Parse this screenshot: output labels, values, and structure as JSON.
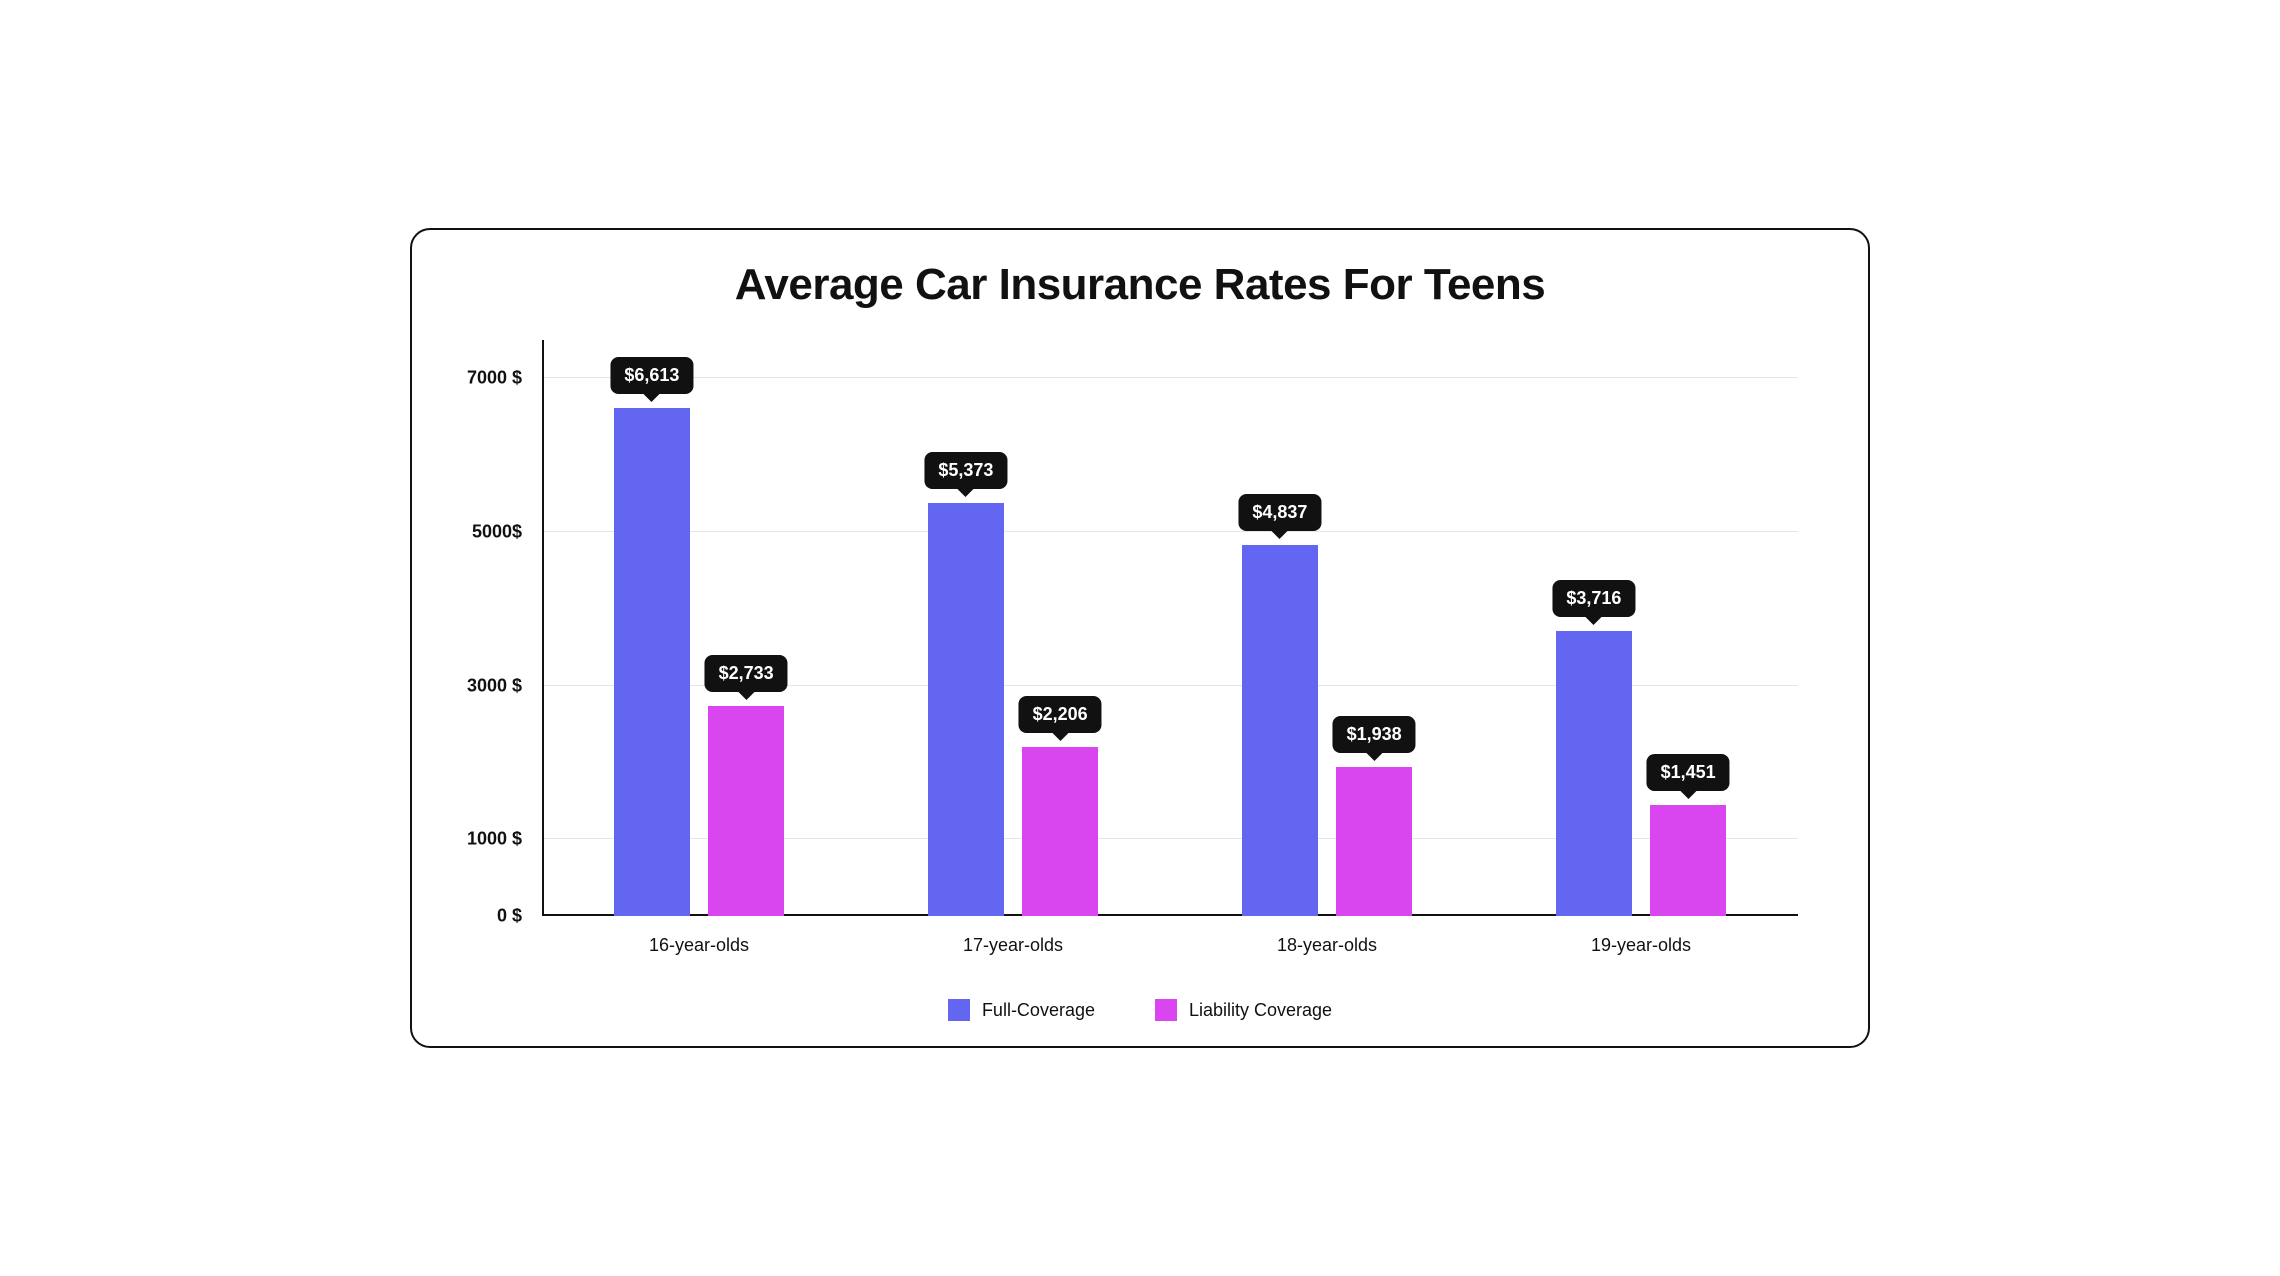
{
  "chart": {
    "type": "bar-grouped",
    "title": "Average Car Insurance Rates For Teens",
    "title_fontsize": 44,
    "background_color": "#ffffff",
    "border_color": "#111111",
    "border_radius": 20,
    "categories": [
      "16-year-olds",
      "17-year-olds",
      "18-year-olds",
      "19-year-olds"
    ],
    "series": [
      {
        "name": "Full-Coverage",
        "color": "#6366f1",
        "values": [
          6613,
          5373,
          4837,
          3716
        ]
      },
      {
        "name": "Liability Coverage",
        "color": "#d946ef",
        "values": [
          2733,
          2206,
          1938,
          1451
        ]
      }
    ],
    "value_labels": [
      [
        "$6,613",
        "$2,733"
      ],
      [
        "$5,373",
        "$2,206"
      ],
      [
        "$4,837",
        "$1,938"
      ],
      [
        "$3,716",
        "$1,451"
      ]
    ],
    "y_axis": {
      "min": 0,
      "max": 7500,
      "ticks": [
        0,
        1000,
        3000,
        5000,
        7000
      ],
      "tick_labels": [
        "0 $",
        "1000 $",
        "3000 $",
        "5000$",
        "7000 $"
      ],
      "label_fontsize": 18
    },
    "x_axis": {
      "label_fontsize": 18
    },
    "gridline_color": "#e5e5e5",
    "axis_color": "#111111",
    "bar_width_pct": 24,
    "bar_gap_pct": 6,
    "bubble_bg": "#111111",
    "bubble_text_color": "#ffffff",
    "bubble_fontsize": 18,
    "legend_fontsize": 18
  }
}
